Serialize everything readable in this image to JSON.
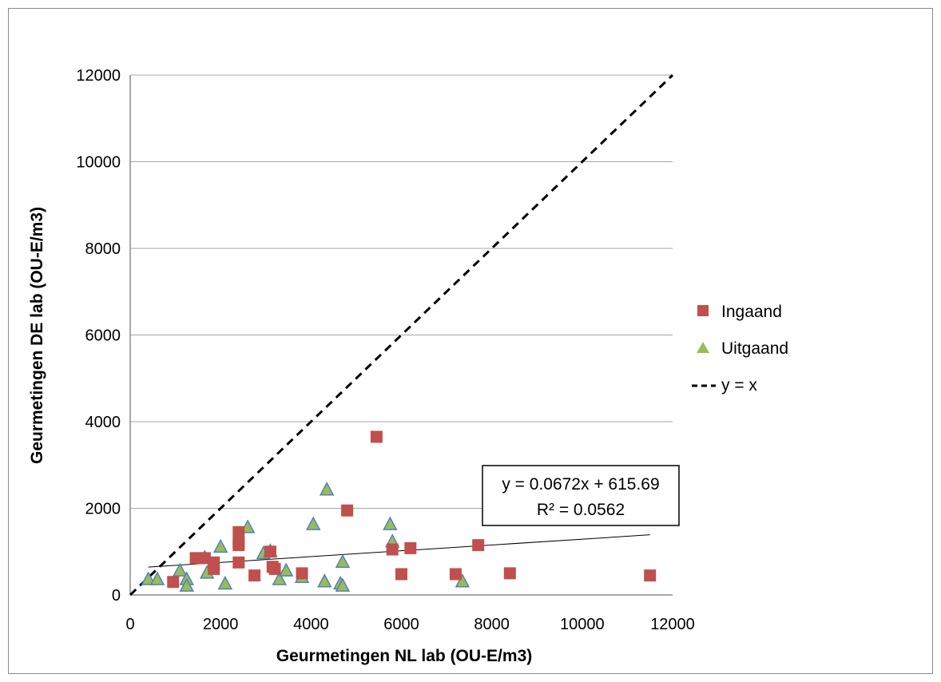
{
  "chart_data": {
    "type": "scatter",
    "title": "",
    "xlabel": "Geurmetingen NL lab (OU-E/m3)",
    "ylabel": "Geurmetingen DE lab (OU-E/m3)",
    "xlim": [
      0,
      12000
    ],
    "ylim": [
      0,
      12000
    ],
    "x_ticks": [
      "0",
      "2000",
      "4000",
      "6000",
      "8000",
      "10000",
      "12000"
    ],
    "y_ticks": [
      "0",
      "2000",
      "4000",
      "6000",
      "8000",
      "10000",
      "12000"
    ],
    "grid": "horizontal",
    "legend_position": "right",
    "series": [
      {
        "name": "Ingaand",
        "marker": "square",
        "color": "#c0504d",
        "points": [
          [
            950,
            300
          ],
          [
            1450,
            850
          ],
          [
            1650,
            850
          ],
          [
            1850,
            750
          ],
          [
            1850,
            600
          ],
          [
            2400,
            1450
          ],
          [
            2400,
            1200
          ],
          [
            2400,
            1150
          ],
          [
            2400,
            750
          ],
          [
            2750,
            450
          ],
          [
            3100,
            1000
          ],
          [
            3150,
            650
          ],
          [
            3200,
            600
          ],
          [
            3800,
            500
          ],
          [
            4800,
            1950
          ],
          [
            5450,
            3650
          ],
          [
            5800,
            1050
          ],
          [
            6000,
            480
          ],
          [
            6200,
            1080
          ],
          [
            7200,
            480
          ],
          [
            7700,
            1150
          ],
          [
            8400,
            500
          ],
          [
            11500,
            450
          ]
        ]
      },
      {
        "name": "Uitgaand",
        "marker": "triangle",
        "color": "#9bbb59",
        "points": [
          [
            400,
            350
          ],
          [
            600,
            350
          ],
          [
            1100,
            550
          ],
          [
            1250,
            350
          ],
          [
            1250,
            200
          ],
          [
            1650,
            850
          ],
          [
            1700,
            500
          ],
          [
            2000,
            1100
          ],
          [
            2100,
            250
          ],
          [
            2600,
            1550
          ],
          [
            2950,
            950
          ],
          [
            3100,
            1000
          ],
          [
            3300,
            350
          ],
          [
            3450,
            550
          ],
          [
            3800,
            400
          ],
          [
            4050,
            1620
          ],
          [
            4300,
            300
          ],
          [
            4350,
            2420
          ],
          [
            4650,
            250
          ],
          [
            4700,
            200
          ],
          [
            4700,
            750
          ],
          [
            5750,
            1620
          ],
          [
            5800,
            1220
          ],
          [
            7350,
            300
          ]
        ]
      },
      {
        "name": "y = x",
        "type": "line",
        "style": "dashed",
        "color": "#000000",
        "points": [
          [
            0,
            0
          ],
          [
            12000,
            12000
          ]
        ]
      }
    ],
    "trendline": {
      "slope": 0.0672,
      "intercept": 615.69,
      "x_range": [
        400,
        11500
      ],
      "equation": "y = 0.0672x + 615.69",
      "r_squared": "R² = 0.0562"
    }
  }
}
